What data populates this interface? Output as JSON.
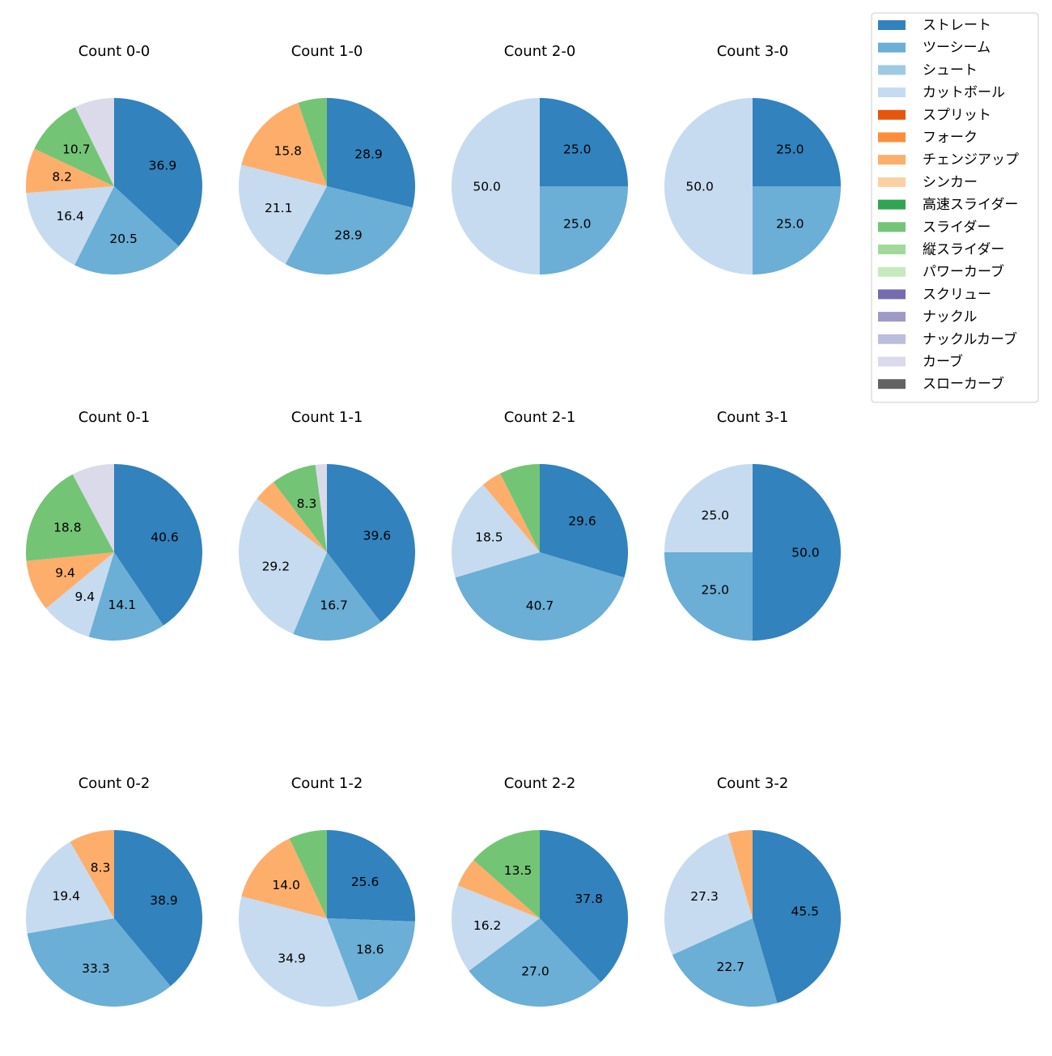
{
  "colors": {
    "ストレート": "#3182bd",
    "ツーシーム": "#6baed6",
    "シュート": "#9ecae1",
    "カットボール": "#c6dbef",
    "スプリット": "#e6550d",
    "フォーク": "#fd8d3c",
    "チェンジアップ": "#fdae6b",
    "シンカー": "#fdd0a2",
    "高速スライダー": "#31a354",
    "スライダー": "#74c476",
    "縦スライダー": "#a1d99b",
    "パワーカーブ": "#c7e9c0",
    "スクリュー": "#756bb1",
    "ナックル": "#9e9ac8",
    "ナックルカーブ": "#bcbddc",
    "カーブ": "#dadaeb",
    "スローカーブ": "#636363"
  },
  "legend": [
    "ストレート",
    "ツーシーム",
    "シュート",
    "カットボール",
    "スプリット",
    "フォーク",
    "チェンジアップ",
    "シンカー",
    "高速スライダー",
    "スライダー",
    "縦スライダー",
    "パワーカーブ",
    "スクリュー",
    "ナックル",
    "ナックルカーブ",
    "カーブ",
    "スローカーブ"
  ],
  "chart_data": [
    {
      "type": "pie",
      "title": "Count 0-0",
      "slices": [
        {
          "pitch": "ストレート",
          "value": 36.9,
          "label": "36.9"
        },
        {
          "pitch": "ツーシーム",
          "value": 20.5,
          "label": "20.5"
        },
        {
          "pitch": "カットボール",
          "value": 16.4,
          "label": "16.4"
        },
        {
          "pitch": "チェンジアップ",
          "value": 8.2,
          "label": "8.2"
        },
        {
          "pitch": "スライダー",
          "value": 10.7,
          "label": "10.7"
        },
        {
          "pitch": "カーブ",
          "value": 7.3,
          "label": ""
        }
      ]
    },
    {
      "type": "pie",
      "title": "Count 1-0",
      "slices": [
        {
          "pitch": "ストレート",
          "value": 28.9,
          "label": "28.9"
        },
        {
          "pitch": "ツーシーム",
          "value": 28.9,
          "label": "28.9"
        },
        {
          "pitch": "カットボール",
          "value": 21.1,
          "label": "21.1"
        },
        {
          "pitch": "チェンジアップ",
          "value": 15.8,
          "label": "15.8"
        },
        {
          "pitch": "スライダー",
          "value": 5.3,
          "label": ""
        }
      ]
    },
    {
      "type": "pie",
      "title": "Count 2-0",
      "slices": [
        {
          "pitch": "ストレート",
          "value": 25.0,
          "label": "25.0"
        },
        {
          "pitch": "ツーシーム",
          "value": 25.0,
          "label": "25.0"
        },
        {
          "pitch": "カットボール",
          "value": 50.0,
          "label": "50.0"
        }
      ]
    },
    {
      "type": "pie",
      "title": "Count 3-0",
      "slices": [
        {
          "pitch": "ストレート",
          "value": 25.0,
          "label": "25.0"
        },
        {
          "pitch": "ツーシーム",
          "value": 25.0,
          "label": "25.0"
        },
        {
          "pitch": "カットボール",
          "value": 50.0,
          "label": "50.0"
        }
      ]
    },
    {
      "type": "pie",
      "title": "Count 0-1",
      "slices": [
        {
          "pitch": "ストレート",
          "value": 40.6,
          "label": "40.6"
        },
        {
          "pitch": "ツーシーム",
          "value": 14.1,
          "label": "14.1"
        },
        {
          "pitch": "カットボール",
          "value": 9.4,
          "label": "9.4"
        },
        {
          "pitch": "チェンジアップ",
          "value": 9.4,
          "label": "9.4"
        },
        {
          "pitch": "スライダー",
          "value": 18.8,
          "label": "18.8"
        },
        {
          "pitch": "カーブ",
          "value": 7.8,
          "label": ""
        }
      ]
    },
    {
      "type": "pie",
      "title": "Count 1-1",
      "slices": [
        {
          "pitch": "ストレート",
          "value": 39.6,
          "label": "39.6"
        },
        {
          "pitch": "ツーシーム",
          "value": 16.7,
          "label": "16.7"
        },
        {
          "pitch": "カットボール",
          "value": 29.2,
          "label": "29.2"
        },
        {
          "pitch": "チェンジアップ",
          "value": 4.2,
          "label": ""
        },
        {
          "pitch": "スライダー",
          "value": 8.3,
          "label": "8.3"
        },
        {
          "pitch": "カーブ",
          "value": 2.1,
          "label": ""
        }
      ]
    },
    {
      "type": "pie",
      "title": "Count 2-1",
      "slices": [
        {
          "pitch": "ストレート",
          "value": 29.6,
          "label": "29.6"
        },
        {
          "pitch": "ツーシーム",
          "value": 40.7,
          "label": "40.7"
        },
        {
          "pitch": "カットボール",
          "value": 18.5,
          "label": "18.5"
        },
        {
          "pitch": "チェンジアップ",
          "value": 3.7,
          "label": ""
        },
        {
          "pitch": "スライダー",
          "value": 7.4,
          "label": ""
        }
      ]
    },
    {
      "type": "pie",
      "title": "Count 3-1",
      "slices": [
        {
          "pitch": "ストレート",
          "value": 50.0,
          "label": "50.0"
        },
        {
          "pitch": "ツーシーム",
          "value": 25.0,
          "label": "25.0"
        },
        {
          "pitch": "カットボール",
          "value": 25.0,
          "label": "25.0"
        }
      ]
    },
    {
      "type": "pie",
      "title": "Count 0-2",
      "slices": [
        {
          "pitch": "ストレート",
          "value": 38.9,
          "label": "38.9"
        },
        {
          "pitch": "ツーシーム",
          "value": 33.3,
          "label": "33.3"
        },
        {
          "pitch": "カットボール",
          "value": 19.4,
          "label": "19.4"
        },
        {
          "pitch": "チェンジアップ",
          "value": 8.3,
          "label": "8.3"
        }
      ]
    },
    {
      "type": "pie",
      "title": "Count 1-2",
      "slices": [
        {
          "pitch": "ストレート",
          "value": 25.6,
          "label": "25.6"
        },
        {
          "pitch": "ツーシーム",
          "value": 18.6,
          "label": "18.6"
        },
        {
          "pitch": "カットボール",
          "value": 34.9,
          "label": "34.9"
        },
        {
          "pitch": "チェンジアップ",
          "value": 14.0,
          "label": "14.0"
        },
        {
          "pitch": "スライダー",
          "value": 7.0,
          "label": ""
        }
      ]
    },
    {
      "type": "pie",
      "title": "Count 2-2",
      "slices": [
        {
          "pitch": "ストレート",
          "value": 37.8,
          "label": "37.8"
        },
        {
          "pitch": "ツーシーム",
          "value": 27.0,
          "label": "27.0"
        },
        {
          "pitch": "カットボール",
          "value": 16.2,
          "label": "16.2"
        },
        {
          "pitch": "チェンジアップ",
          "value": 5.4,
          "label": ""
        },
        {
          "pitch": "スライダー",
          "value": 13.5,
          "label": "13.5"
        }
      ]
    },
    {
      "type": "pie",
      "title": "Count 3-2",
      "slices": [
        {
          "pitch": "ストレート",
          "value": 45.5,
          "label": "45.5"
        },
        {
          "pitch": "ツーシーム",
          "value": 22.7,
          "label": "22.7"
        },
        {
          "pitch": "カットボール",
          "value": 27.3,
          "label": "27.3"
        },
        {
          "pitch": "チェンジアップ",
          "value": 4.5,
          "label": ""
        }
      ]
    }
  ]
}
